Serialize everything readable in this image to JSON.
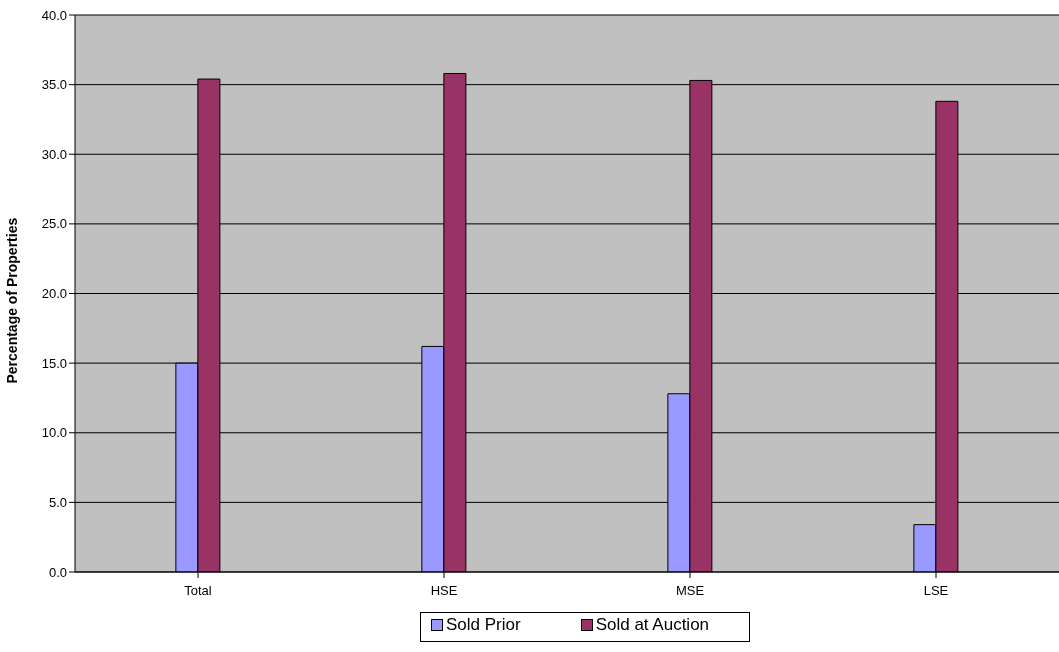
{
  "chart_data": {
    "type": "bar",
    "ylabel": "Percentage of Properties",
    "categories": [
      "Total",
      "HSE",
      "MSE",
      "LSE"
    ],
    "series": [
      {
        "name": "Sold Prior",
        "color": "#9999ff",
        "values": [
          15.0,
          16.2,
          12.8,
          3.4
        ]
      },
      {
        "name": "Sold at Auction",
        "color": "#993366",
        "values": [
          35.4,
          35.8,
          35.3,
          33.8
        ]
      }
    ],
    "ylim": [
      0,
      40
    ],
    "yticks": [
      {
        "value": 0,
        "label": "0.0"
      },
      {
        "value": 5,
        "label": "5.0"
      },
      {
        "value": 10,
        "label": "10.0"
      },
      {
        "value": 15,
        "label": "15.0"
      },
      {
        "value": 20,
        "label": "20.0"
      },
      {
        "value": 25,
        "label": "25.0"
      },
      {
        "value": 30,
        "label": "30.0"
      },
      {
        "value": 35,
        "label": "35.0"
      },
      {
        "value": 40,
        "label": "40.0"
      }
    ],
    "grid": "y",
    "legend": "bottom"
  }
}
